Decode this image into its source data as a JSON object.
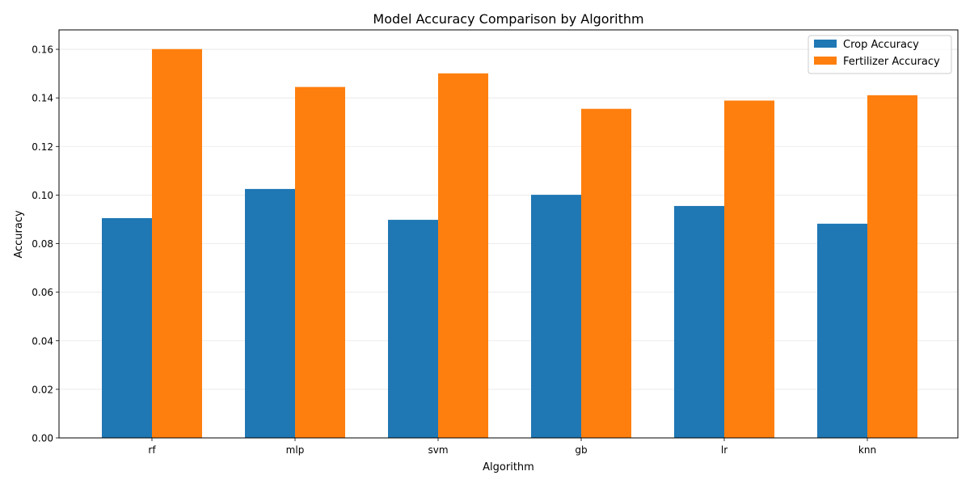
{
  "chart_data": {
    "type": "bar",
    "title": "Model Accuracy Comparison by Algorithm",
    "xlabel": "Algorithm",
    "ylabel": "Accuracy",
    "categories": [
      "rf",
      "mlp",
      "svm",
      "gb",
      "lr",
      "knn"
    ],
    "series": [
      {
        "name": "Crop Accuracy",
        "color": "#1f77b4",
        "values": [
          0.0905,
          0.1025,
          0.0898,
          0.1001,
          0.0955,
          0.0882
        ]
      },
      {
        "name": "Fertilizer Accuracy",
        "color": "#ff7f0e",
        "values": [
          0.1601,
          0.1445,
          0.1501,
          0.1355,
          0.1389,
          0.1411
        ]
      }
    ],
    "ylim": [
      0,
      0.168
    ],
    "yticks": [
      "0.00",
      "0.02",
      "0.04",
      "0.06",
      "0.08",
      "0.10",
      "0.12",
      "0.14",
      "0.16"
    ],
    "grid": "horizontal",
    "legend_position": "top-right"
  }
}
